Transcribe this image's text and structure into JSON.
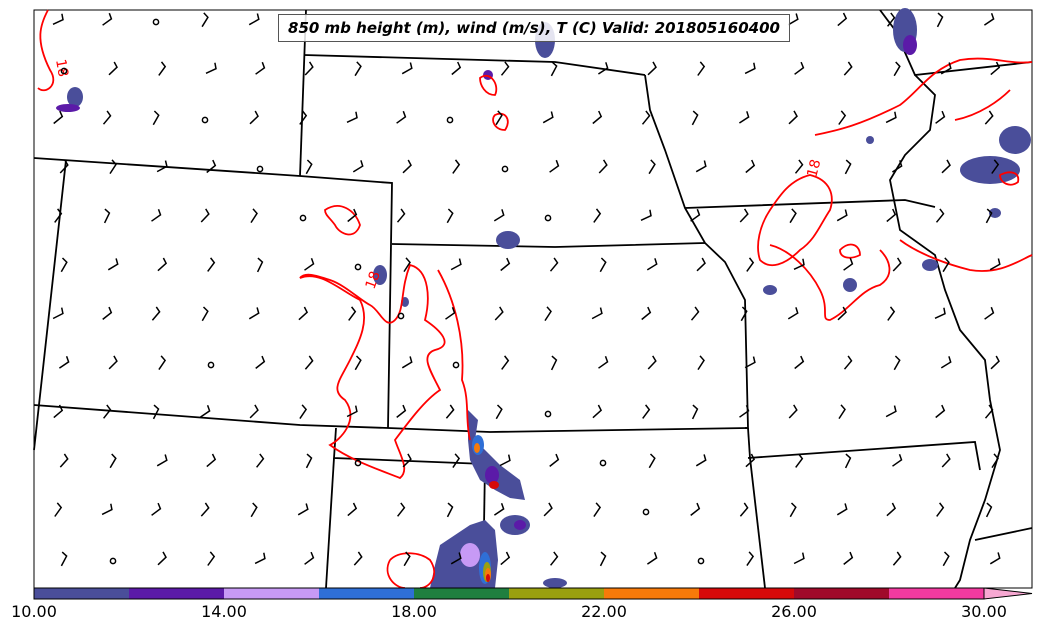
{
  "title": "850 mb height (m), wind (m/s), T (C) Valid: 201805160400",
  "contour_labels": [
    "18",
    "18",
    "18"
  ],
  "colorbar": {
    "ticks": [
      "10.00",
      "14.00",
      "18.00",
      "22.00",
      "26.00",
      "30.00"
    ],
    "colors": [
      "#4a4e9a",
      "#5b1aa8",
      "#c79af5",
      "#2f6fd6",
      "#1f7f3f",
      "#9aa010",
      "#f77a0a",
      "#d60a0a",
      "#a00a2a",
      "#f23aa0",
      "#f7a8d2"
    ]
  },
  "colors": {
    "temperature_contour": "#ff0000",
    "boundaries": "#000000",
    "precip_base": "#4a4e9a"
  }
}
